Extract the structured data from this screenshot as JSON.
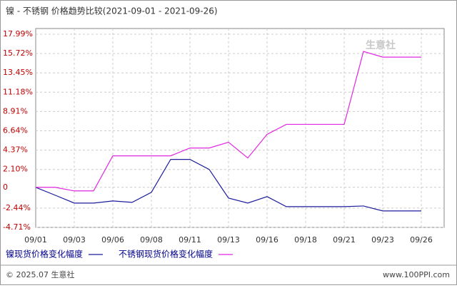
{
  "chart_data": {
    "type": "line",
    "title": "镍 - 不锈钢 价格趋势比较(2021-09-01 - 2021-09-26)",
    "watermark": "生意社",
    "categories": [
      "09/01",
      null,
      "09/03",
      null,
      "09/06",
      null,
      "09/08",
      null,
      "09/11",
      null,
      "09/13",
      null,
      "09/16",
      null,
      "09/18",
      null,
      "09/21",
      null,
      "09/23",
      null,
      "09/26"
    ],
    "series": [
      {
        "name": "镍现货价格变化幅度",
        "color": "#1c1c9c",
        "values": [
          0,
          -0.92,
          -1.85,
          -1.85,
          -1.6,
          -1.77,
          -0.59,
          3.28,
          3.28,
          2.1,
          -1.26,
          -1.85,
          -1.09,
          -2.27,
          -2.27,
          -2.27,
          -2.27,
          -2.19,
          -2.77,
          -2.77,
          -2.77
        ]
      },
      {
        "name": "不锈钢现货价格变化幅度",
        "color": "#e028e0",
        "values": [
          0,
          0,
          -0.42,
          -0.42,
          3.7,
          3.7,
          3.7,
          3.7,
          4.62,
          4.62,
          5.3,
          3.45,
          6.22,
          7.4,
          7.4,
          7.4,
          7.4,
          15.97,
          15.3,
          15.3,
          15.3
        ]
      }
    ],
    "ylim": [
      -4.71,
      17.99
    ],
    "yticks": [
      {
        "value": 17.99,
        "label": "17.99%"
      },
      {
        "value": 15.72,
        "label": "15.72%"
      },
      {
        "value": 13.45,
        "label": "13.45%"
      },
      {
        "value": 11.18,
        "label": "11.18%"
      },
      {
        "value": 8.91,
        "label": "8.91%"
      },
      {
        "value": 6.64,
        "label": "6.64%"
      },
      {
        "value": 4.37,
        "label": "4.37%"
      },
      {
        "value": 2.1,
        "label": "2.10%"
      },
      0,
      {
        "value": -2.44,
        "label": "-2.44%"
      },
      {
        "value": -4.71,
        "label": "-4.71%"
      }
    ],
    "grid": true
  },
  "footer": {
    "copyright": "© 2025.07 生意社",
    "site": "www.100PPI.com"
  }
}
